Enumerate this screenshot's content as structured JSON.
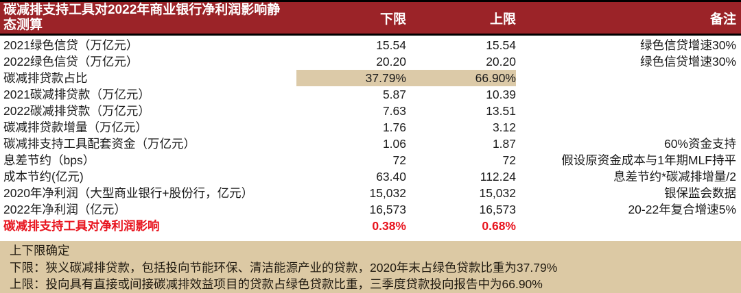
{
  "colors": {
    "header_bg": "#9b2328",
    "header_text": "#ffffff",
    "highlight_bg": "#dccaa8",
    "footnote_bg": "#dcc9a4",
    "accent_red": "#e8141e"
  },
  "table": {
    "title": "碳减排支持工具对2022年商业银行净利润影响静态测算",
    "columns": {
      "lower": "下限",
      "upper": "上限",
      "remark": "备注"
    },
    "rows": [
      {
        "label": "2021绿色信贷（万亿元）",
        "lower": "15.54",
        "upper": "15.54",
        "remark": "绿色信贷增速30%",
        "highlight": false,
        "red": false
      },
      {
        "label": "2022绿色信贷（万亿元）",
        "lower": "20.20",
        "upper": "20.20",
        "remark": "绿色信贷增速30%",
        "highlight": false,
        "red": false
      },
      {
        "label": "碳减排贷款占比",
        "lower": "37.79%",
        "upper": "66.90%",
        "remark": "",
        "highlight": true,
        "red": false
      },
      {
        "label": "2021碳减排贷款（万亿元）",
        "lower": "5.87",
        "upper": "10.39",
        "remark": "",
        "highlight": false,
        "red": false
      },
      {
        "label": "2022碳减排贷款（万亿元）",
        "lower": "7.63",
        "upper": "13.51",
        "remark": "",
        "highlight": false,
        "red": false
      },
      {
        "label": "碳减排贷款增量（万亿元）",
        "lower": "1.76",
        "upper": "3.12",
        "remark": "",
        "highlight": false,
        "red": false
      },
      {
        "label": "碳减排支持工具配套资金（万亿元）",
        "lower": "1.06",
        "upper": "1.87",
        "remark": "60%资金支持",
        "highlight": false,
        "red": false
      },
      {
        "label": "息差节约（bps）",
        "lower": "72",
        "upper": "72",
        "remark": "假设原资金成本与1年期MLF持平",
        "highlight": false,
        "red": false
      },
      {
        "label": "成本节约(亿元)",
        "lower": "63.40",
        "upper": "112.24",
        "remark": "息差节约*碳减排增量/2",
        "highlight": false,
        "red": false
      },
      {
        "label": "2020年净利润（大型商业银行+股份行，亿元）",
        "lower": "15,032",
        "upper": "15,032",
        "remark": "银保监会数据",
        "highlight": false,
        "red": false
      },
      {
        "label": "2022年净利润（亿元）",
        "lower": "16,573",
        "upper": "16,573",
        "remark": "20-22年复合增速5%",
        "highlight": false,
        "red": false
      },
      {
        "label": "碳减排支持工具对净利润影响",
        "lower": "0.38%",
        "upper": "0.68%",
        "remark": "",
        "highlight": false,
        "red": true
      }
    ]
  },
  "footnote": {
    "title": "上下限确定",
    "lines": [
      "下限：狭义碳减排贷款，包括投向节能环保、清洁能源产业的贷款，2020年末占绿色贷款比重为37.79%",
      "上限：投向具有直接或间接碳减排效益项目的贷款占绿色贷款比重，三季度贷款投向报告中为66.90%"
    ]
  }
}
